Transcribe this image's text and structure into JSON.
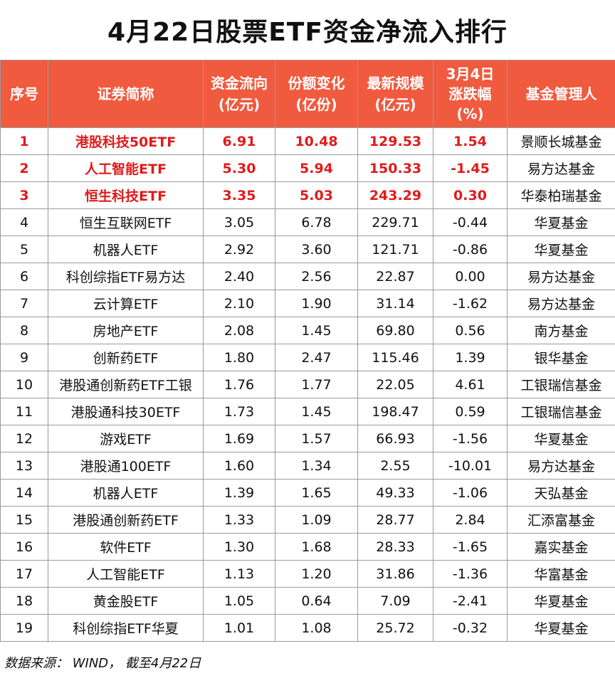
{
  "title": "4月22日股票ETF资金净流入排行",
  "headers": {
    "seq": "序号",
    "name": "证券简称",
    "flow": "资金流向\n(亿元)",
    "share": "份额变化\n(亿份)",
    "scale": "最新规模\n(亿元)",
    "change": "3月4日\n涨跌幅\n(%)",
    "manager": "基金管理人"
  },
  "highlight_color": "#e21a1a",
  "header_color": "#f05a3e",
  "rows": [
    {
      "seq": "1",
      "name": "港股科技50ETF",
      "flow": "6.91",
      "share": "10.48",
      "scale": "129.53",
      "change": "1.54",
      "manager": "景顺长城基金"
    },
    {
      "seq": "2",
      "name": "人工智能ETF",
      "flow": "5.30",
      "share": "5.94",
      "scale": "150.33",
      "change": "-1.45",
      "manager": "易方达基金"
    },
    {
      "seq": "3",
      "name": "恒生科技ETF",
      "flow": "3.35",
      "share": "5.03",
      "scale": "243.29",
      "change": "0.30",
      "manager": "华泰柏瑞基金"
    },
    {
      "seq": "4",
      "name": "恒生互联网ETF",
      "flow": "3.05",
      "share": "6.78",
      "scale": "229.71",
      "change": "-0.44",
      "manager": "华夏基金"
    },
    {
      "seq": "5",
      "name": "机器人ETF",
      "flow": "2.92",
      "share": "3.60",
      "scale": "121.71",
      "change": "-0.86",
      "manager": "华夏基金"
    },
    {
      "seq": "6",
      "name": "科创综指ETF易方达",
      "flow": "2.40",
      "share": "2.56",
      "scale": "22.87",
      "change": "0.00",
      "manager": "易方达基金"
    },
    {
      "seq": "7",
      "name": "云计算ETF",
      "flow": "2.10",
      "share": "1.90",
      "scale": "31.14",
      "change": "-1.62",
      "manager": "易方达基金"
    },
    {
      "seq": "8",
      "name": "房地产ETF",
      "flow": "2.08",
      "share": "1.45",
      "scale": "69.80",
      "change": "0.56",
      "manager": "南方基金"
    },
    {
      "seq": "9",
      "name": "创新药ETF",
      "flow": "1.80",
      "share": "2.47",
      "scale": "115.46",
      "change": "1.39",
      "manager": "银华基金"
    },
    {
      "seq": "10",
      "name": "港股通创新药ETF工银",
      "flow": "1.76",
      "share": "1.77",
      "scale": "22.05",
      "change": "4.61",
      "manager": "工银瑞信基金"
    },
    {
      "seq": "11",
      "name": "港股通科技30ETF",
      "flow": "1.73",
      "share": "1.45",
      "scale": "198.47",
      "change": "0.59",
      "manager": "工银瑞信基金"
    },
    {
      "seq": "12",
      "name": "游戏ETF",
      "flow": "1.69",
      "share": "1.57",
      "scale": "66.93",
      "change": "-1.56",
      "manager": "华夏基金"
    },
    {
      "seq": "13",
      "name": "港股通100ETF",
      "flow": "1.60",
      "share": "1.34",
      "scale": "2.55",
      "change": "-10.01",
      "manager": "易方达基金"
    },
    {
      "seq": "14",
      "name": "机器人ETF",
      "flow": "1.39",
      "share": "1.65",
      "scale": "49.33",
      "change": "-1.06",
      "manager": "天弘基金"
    },
    {
      "seq": "15",
      "name": "港股通创新药ETF",
      "flow": "1.33",
      "share": "1.09",
      "scale": "28.77",
      "change": "2.84",
      "manager": "汇添富基金"
    },
    {
      "seq": "16",
      "name": "软件ETF",
      "flow": "1.30",
      "share": "1.68",
      "scale": "28.33",
      "change": "-1.65",
      "manager": "嘉实基金"
    },
    {
      "seq": "17",
      "name": "人工智能ETF",
      "flow": "1.13",
      "share": "1.20",
      "scale": "31.86",
      "change": "-1.36",
      "manager": "华富基金"
    },
    {
      "seq": "18",
      "name": "黄金股ETF",
      "flow": "1.05",
      "share": "0.64",
      "scale": "7.09",
      "change": "-2.41",
      "manager": "华夏基金"
    },
    {
      "seq": "19",
      "name": "科创综指ETF华夏",
      "flow": "1.01",
      "share": "1.08",
      "scale": "25.72",
      "change": "-0.32",
      "manager": "华夏基金"
    }
  ],
  "highlighted_rows": 3,
  "source": "数据来源： WIND， 截至4月22日"
}
